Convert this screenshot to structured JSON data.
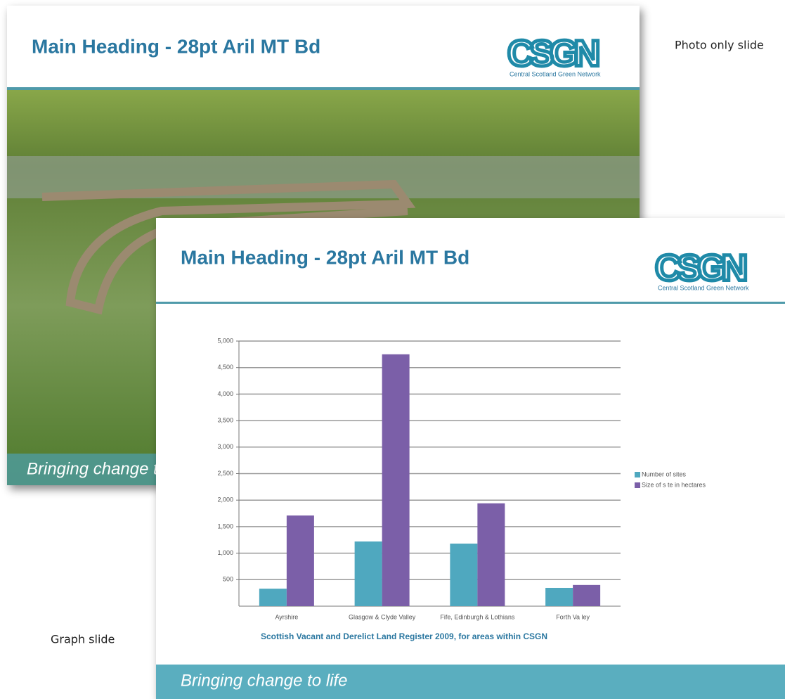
{
  "labels": {
    "photo_slide": "Photo only slide",
    "graph_slide": "Graph slide"
  },
  "photo_slide": {
    "title": "Main Heading - 28pt Aril MT Bd",
    "logo": "CSGN",
    "logo_caption": "Central Scotland Green Network",
    "footer": "Bringing change to life"
  },
  "graph_slide": {
    "title": "Main Heading - 28pt Aril MT Bd",
    "logo": "CSGN",
    "logo_caption": "Central Scotland Green Network",
    "footer": "Bringing change to life"
  },
  "chart_data": {
    "type": "bar",
    "caption": "Scottish Vacant and Derelict Land Register 2009, for areas within CSGN",
    "categories": [
      "Ayrshire",
      "Glasgow & Clyde Valley",
      "Fife, Edinburgh & Lothians",
      "Forth Va ley"
    ],
    "series": [
      {
        "name": "Number of sites",
        "color": "#4fa8bf",
        "values": [
          330,
          1220,
          1180,
          345
        ]
      },
      {
        "name": "Size of s te in hectares",
        "color": "#7b5fa8",
        "values": [
          1710,
          4750,
          1940,
          400
        ]
      }
    ],
    "ylim": [
      0,
      5000
    ],
    "yticks": [
      500,
      {
        "value": 1000,
        "label": "1,000"
      },
      {
        "value": 1500,
        "label": "1,500"
      },
      {
        "value": 2000,
        "label": "2,000"
      },
      {
        "value": 2500,
        "label": "2,500"
      },
      {
        "value": 3000,
        "label": "3,000"
      },
      {
        "value": 3500,
        "label": "3,500"
      },
      {
        "value": 4000,
        "label": "4,000"
      },
      {
        "value": 4500,
        "label": "4,500"
      },
      {
        "value": 5000,
        "label": "5,000"
      }
    ],
    "grid": true,
    "legend": "right"
  }
}
